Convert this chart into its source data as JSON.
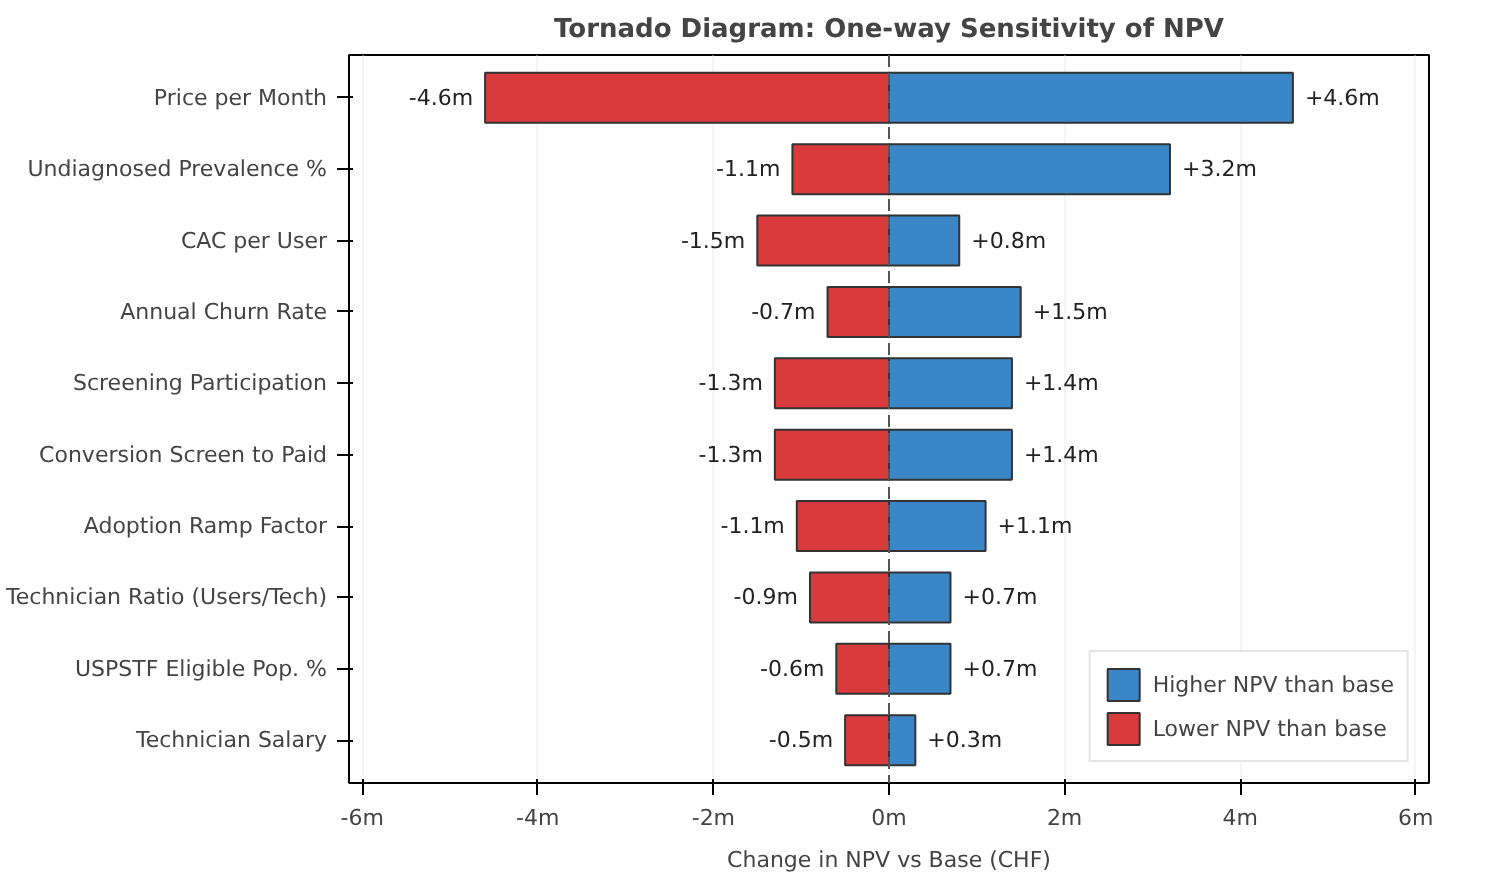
{
  "chart_data": {
    "type": "bar",
    "orientation": "horizontal",
    "title": "Tornado Diagram: One-way Sensitivity of NPV",
    "xlabel": "Change in NPV vs Base (CHF)",
    "categories": [
      "Price per Month",
      "Undiagnosed Prevalence %",
      "CAC per User",
      "Annual Churn Rate",
      "Screening Participation",
      "Conversion Screen to Paid",
      "Adoption Ramp Factor",
      "Technician Ratio (Users/Tech)",
      "USPSTF Eligible Pop. %",
      "Technician Salary"
    ],
    "series": [
      {
        "name": "Higher NPV than base",
        "color": "#3b86c6",
        "values": [
          4.6,
          3.2,
          0.8,
          1.5,
          1.4,
          1.4,
          1.1,
          0.7,
          0.7,
          0.3
        ],
        "value_labels": [
          "+4.6m",
          "+3.2m",
          "+0.8m",
          "+1.5m",
          "+1.4m",
          "+1.4m",
          "+1.1m",
          "+0.7m",
          "+0.7m",
          "+0.3m"
        ]
      },
      {
        "name": "Lower NPV than base",
        "color": "#d93a3c",
        "values": [
          -4.6,
          -1.1,
          -1.5,
          -0.7,
          -1.3,
          -1.3,
          -1.05,
          -0.9,
          -0.6,
          -0.5
        ],
        "value_labels": [
          "-4.6m",
          "-1.1m",
          "-1.5m",
          "-0.7m",
          "-1.3m",
          "-1.3m",
          "-1.1m",
          "-0.9m",
          "-0.6m",
          "-0.5m"
        ]
      }
    ],
    "xlim": [
      -6.15,
      6.15
    ],
    "xticks": [
      {
        "value": -6,
        "label": "-6m"
      },
      {
        "value": -4,
        "label": "-4m"
      },
      {
        "value": -2,
        "label": "-2m"
      },
      {
        "value": 0,
        "label": "0m"
      },
      {
        "value": 2,
        "label": "2m"
      },
      {
        "value": 4,
        "label": "4m"
      },
      {
        "value": 6,
        "label": "6m"
      }
    ],
    "ref_lines": [
      {
        "axis": "x",
        "value": 0,
        "label": null,
        "color": "#555555",
        "line_style": "dashed"
      }
    ],
    "stacked": true,
    "grid": "x",
    "legend": "bottom right"
  }
}
